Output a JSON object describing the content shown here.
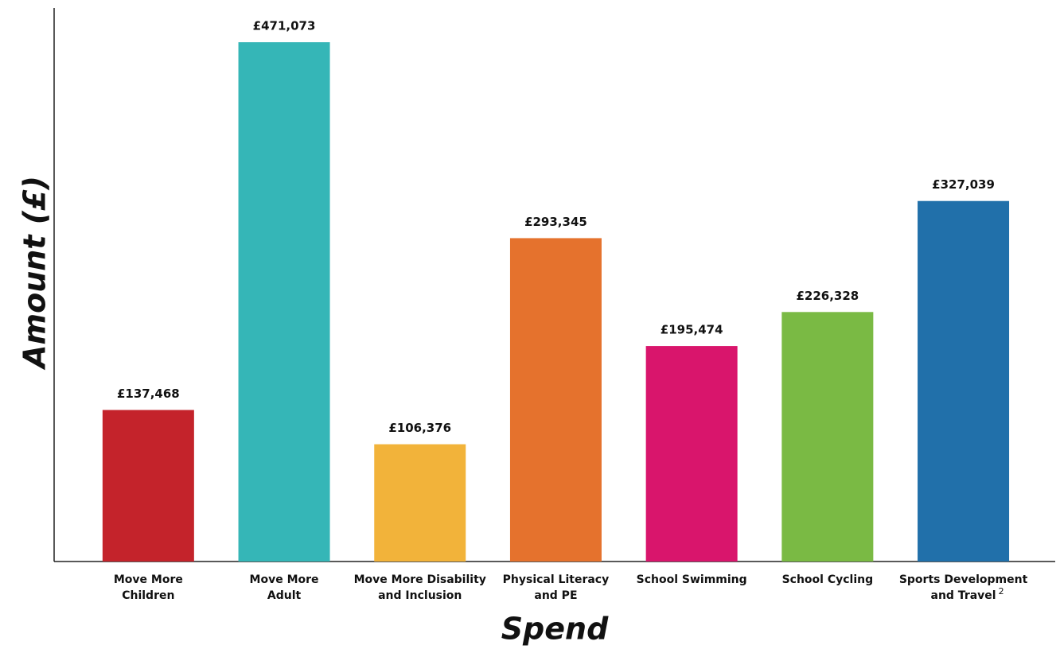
{
  "chart_data": {
    "type": "bar",
    "x_label": "Spend",
    "y_label": "Amount (£)",
    "categories": [
      [
        "Move More",
        "Children"
      ],
      [
        "Move More",
        "Adult"
      ],
      [
        "Move More Disability",
        "and Inclusion"
      ],
      [
        "Physical Literacy",
        "and PE"
      ],
      [
        "School Swimming"
      ],
      [
        "School Cycling"
      ],
      [
        "Sports Development",
        "and Travel"
      ]
    ],
    "annotations": [
      {
        "category": 6,
        "text": "2"
      }
    ],
    "values": [
      137468,
      471073,
      106376,
      293345,
      195474,
      226328,
      327039
    ],
    "value_labels": [
      "£137,468",
      "£471,073",
      "£106,376",
      "£293,345",
      "£195,474",
      "£226,328",
      "£327,039"
    ],
    "colors": [
      "#c4232b",
      "#35b6b7",
      "#f2b33a",
      "#e5722d",
      "#d9156c",
      "#7aba44",
      "#2170aa"
    ],
    "ylim": [
      0,
      500000
    ]
  }
}
